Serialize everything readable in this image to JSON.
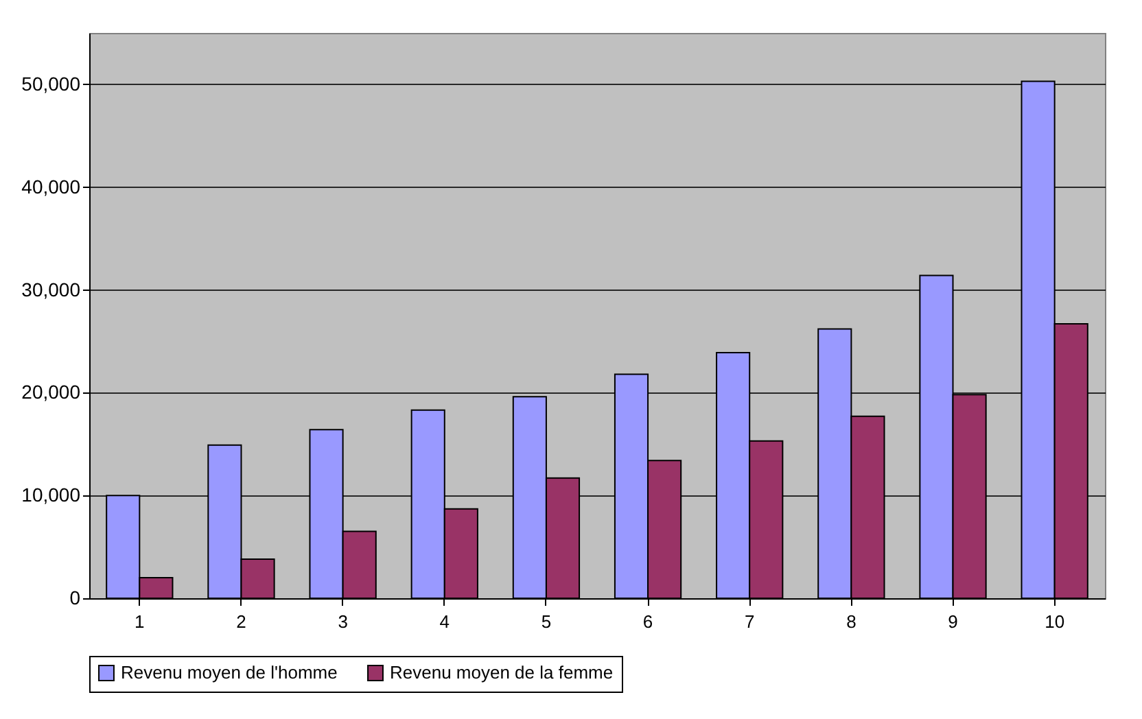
{
  "chart_data": {
    "type": "bar",
    "categories": [
      "1",
      "2",
      "3",
      "4",
      "5",
      "6",
      "7",
      "8",
      "9",
      "10"
    ],
    "series": [
      {
        "name": "Revenu moyen de l'homme",
        "color": "#9999ff",
        "values": [
          10000,
          14900,
          16400,
          18300,
          19600,
          21800,
          23900,
          26200,
          31400,
          50300
        ]
      },
      {
        "name": "Revenu moyen de la femme",
        "color": "#993366",
        "values": [
          2000,
          3800,
          6500,
          8700,
          11700,
          13400,
          15300,
          17700,
          19800,
          26700
        ]
      }
    ],
    "ylim": [
      0,
      55000
    ],
    "yticks": [
      0,
      {
        "value": 10000,
        "label": "10,000"
      },
      {
        "value": 20000,
        "label": "20,000"
      },
      {
        "value": 30000,
        "label": "30,000"
      },
      {
        "value": 40000,
        "label": "40,000"
      },
      {
        "value": 50000,
        "label": "50,000"
      }
    ],
    "grid": "y",
    "legend": "bottom"
  }
}
